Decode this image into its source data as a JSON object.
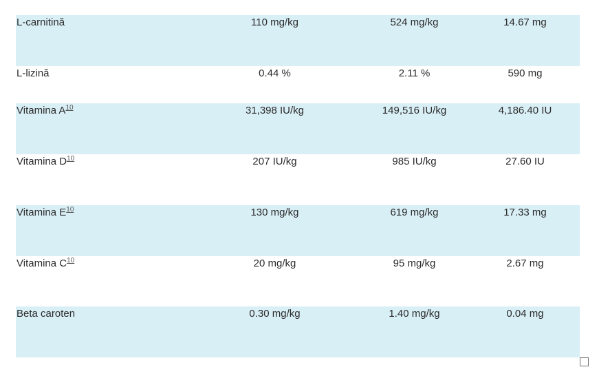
{
  "rows": [
    {
      "name": "L-carnitină",
      "footnote": "",
      "col_a": "110 mg/kg",
      "col_b": "524 mg/kg",
      "col_c": "14.67 mg",
      "shaded": true,
      "height": 74
    },
    {
      "name": "L-lizină",
      "footnote": "",
      "col_a": "0.44 %",
      "col_b": "2.11 %",
      "col_c": "590 mg",
      "shaded": false,
      "height": 54
    },
    {
      "name": "Vitamina A",
      "footnote": "10",
      "col_a": "31,398 IU/kg",
      "col_b": "149,516 IU/kg",
      "col_c": "4,186.40 IU",
      "shaded": true,
      "height": 74
    },
    {
      "name": "Vitamina D",
      "footnote": "10",
      "col_a": "207 IU/kg",
      "col_b": "985 IU/kg",
      "col_c": "27.60 IU",
      "shaded": false,
      "height": 74
    },
    {
      "name": "Vitamina E",
      "footnote": "10",
      "col_a": "130 mg/kg",
      "col_b": "619 mg/kg",
      "col_c": "17.33 mg",
      "shaded": true,
      "height": 74
    },
    {
      "name": "Vitamina C",
      "footnote": "10",
      "col_a": "20 mg/kg",
      "col_b": "95 mg/kg",
      "col_c": "2.67 mg",
      "shaded": false,
      "height": 73
    },
    {
      "name": "Beta caroten",
      "footnote": "",
      "col_a": "0.30 mg/kg",
      "col_b": "1.40 mg/kg",
      "col_c": "0.04 mg",
      "shaded": true,
      "height": 74
    }
  ]
}
